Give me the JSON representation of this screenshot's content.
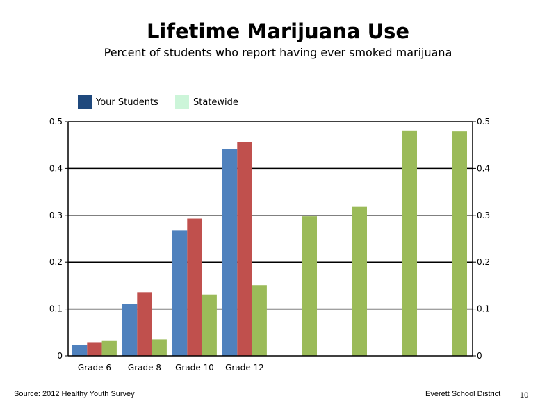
{
  "chart_data": {
    "type": "bar",
    "title": "Lifetime Marijuana Use",
    "subtitle": "Percent of students who report having ever smoked marijuana",
    "categories": [
      "Grade 6",
      "Grade 8",
      "Grade 10",
      "Grade 12"
    ],
    "series": [
      {
        "values": [
          0.023,
          0.11,
          0.268,
          0.441
        ],
        "color": "#4f81bd"
      },
      {
        "values": [
          0.029,
          0.136,
          0.293,
          0.456
        ],
        "color": "#c0504d"
      },
      {
        "values": [
          0.033,
          0.035,
          0.131,
          0.151
        ],
        "color": "#9bbb59"
      }
    ],
    "extra_series": [
      {
        "values": [
          0.298,
          0.318,
          0.481,
          0.479
        ],
        "color": "#9bbb59",
        "axis": "right"
      }
    ],
    "ylim": [
      0,
      0.5
    ],
    "yticks": [
      "0",
      "0.1",
      "0.2",
      "0.3",
      "0.4",
      "0.5"
    ],
    "y2ticks": [
      "0",
      "0.1",
      "0.2",
      "0.3",
      "0.4",
      "0.5"
    ],
    "grid": true,
    "legend": [
      {
        "label": "Your Students",
        "color": "#1f497d"
      },
      {
        "label": "Statewide",
        "color": "#ccf5d9"
      }
    ],
    "legend_position": "top-left"
  },
  "footer": {
    "source": "Source: 2012 Healthy Youth Survey",
    "district": "Everett School District",
    "page_number": "10"
  }
}
